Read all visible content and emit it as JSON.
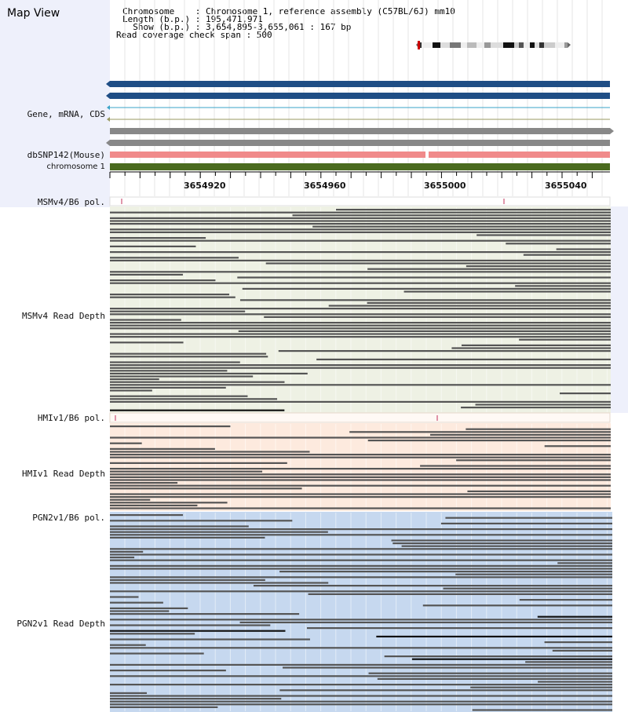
{
  "app": {
    "title": "Map View"
  },
  "header": {
    "chromosome_line": "Chromosome    : Chromosome 1, reference assembly (C57BL/6J) mm10",
    "length_line": "Length (b.p.) : 195,471,971",
    "show_line": "  Show (b.p.) : 3,654,895-3,655,061 : 167 bp",
    "coverage_line": "Read coverage check span : 500"
  },
  "tracks": {
    "gene": "Gene, mRNA, CDS",
    "dbsnp": "dbSNP142(Mouse)",
    "chromosome": "chromosome 1",
    "msm_pol": "MSMv4/B6 pol.",
    "msm_depth": "MSMv4 Read Depth",
    "hmi_pol": "HMIv1/B6 pol.",
    "hmi_depth": "HMIv1 Read Depth",
    "pgn_pol": "PGN2v1/B6 pol.",
    "pgn_depth": "PGN2v1 Read Depth"
  },
  "ruler": {
    "ticks": [
      "3654920",
      "3654960",
      "3655000",
      "3655040"
    ]
  },
  "colors": {
    "gene_track": "#1f4e85",
    "msm_bg": "#eef1e4",
    "hmi_bg": "#fdeade",
    "pgn_bg": "#c6d8ef",
    "read": "#555555",
    "snp": "#f08a8a",
    "chromosome_bar": "#4a6a1e"
  }
}
